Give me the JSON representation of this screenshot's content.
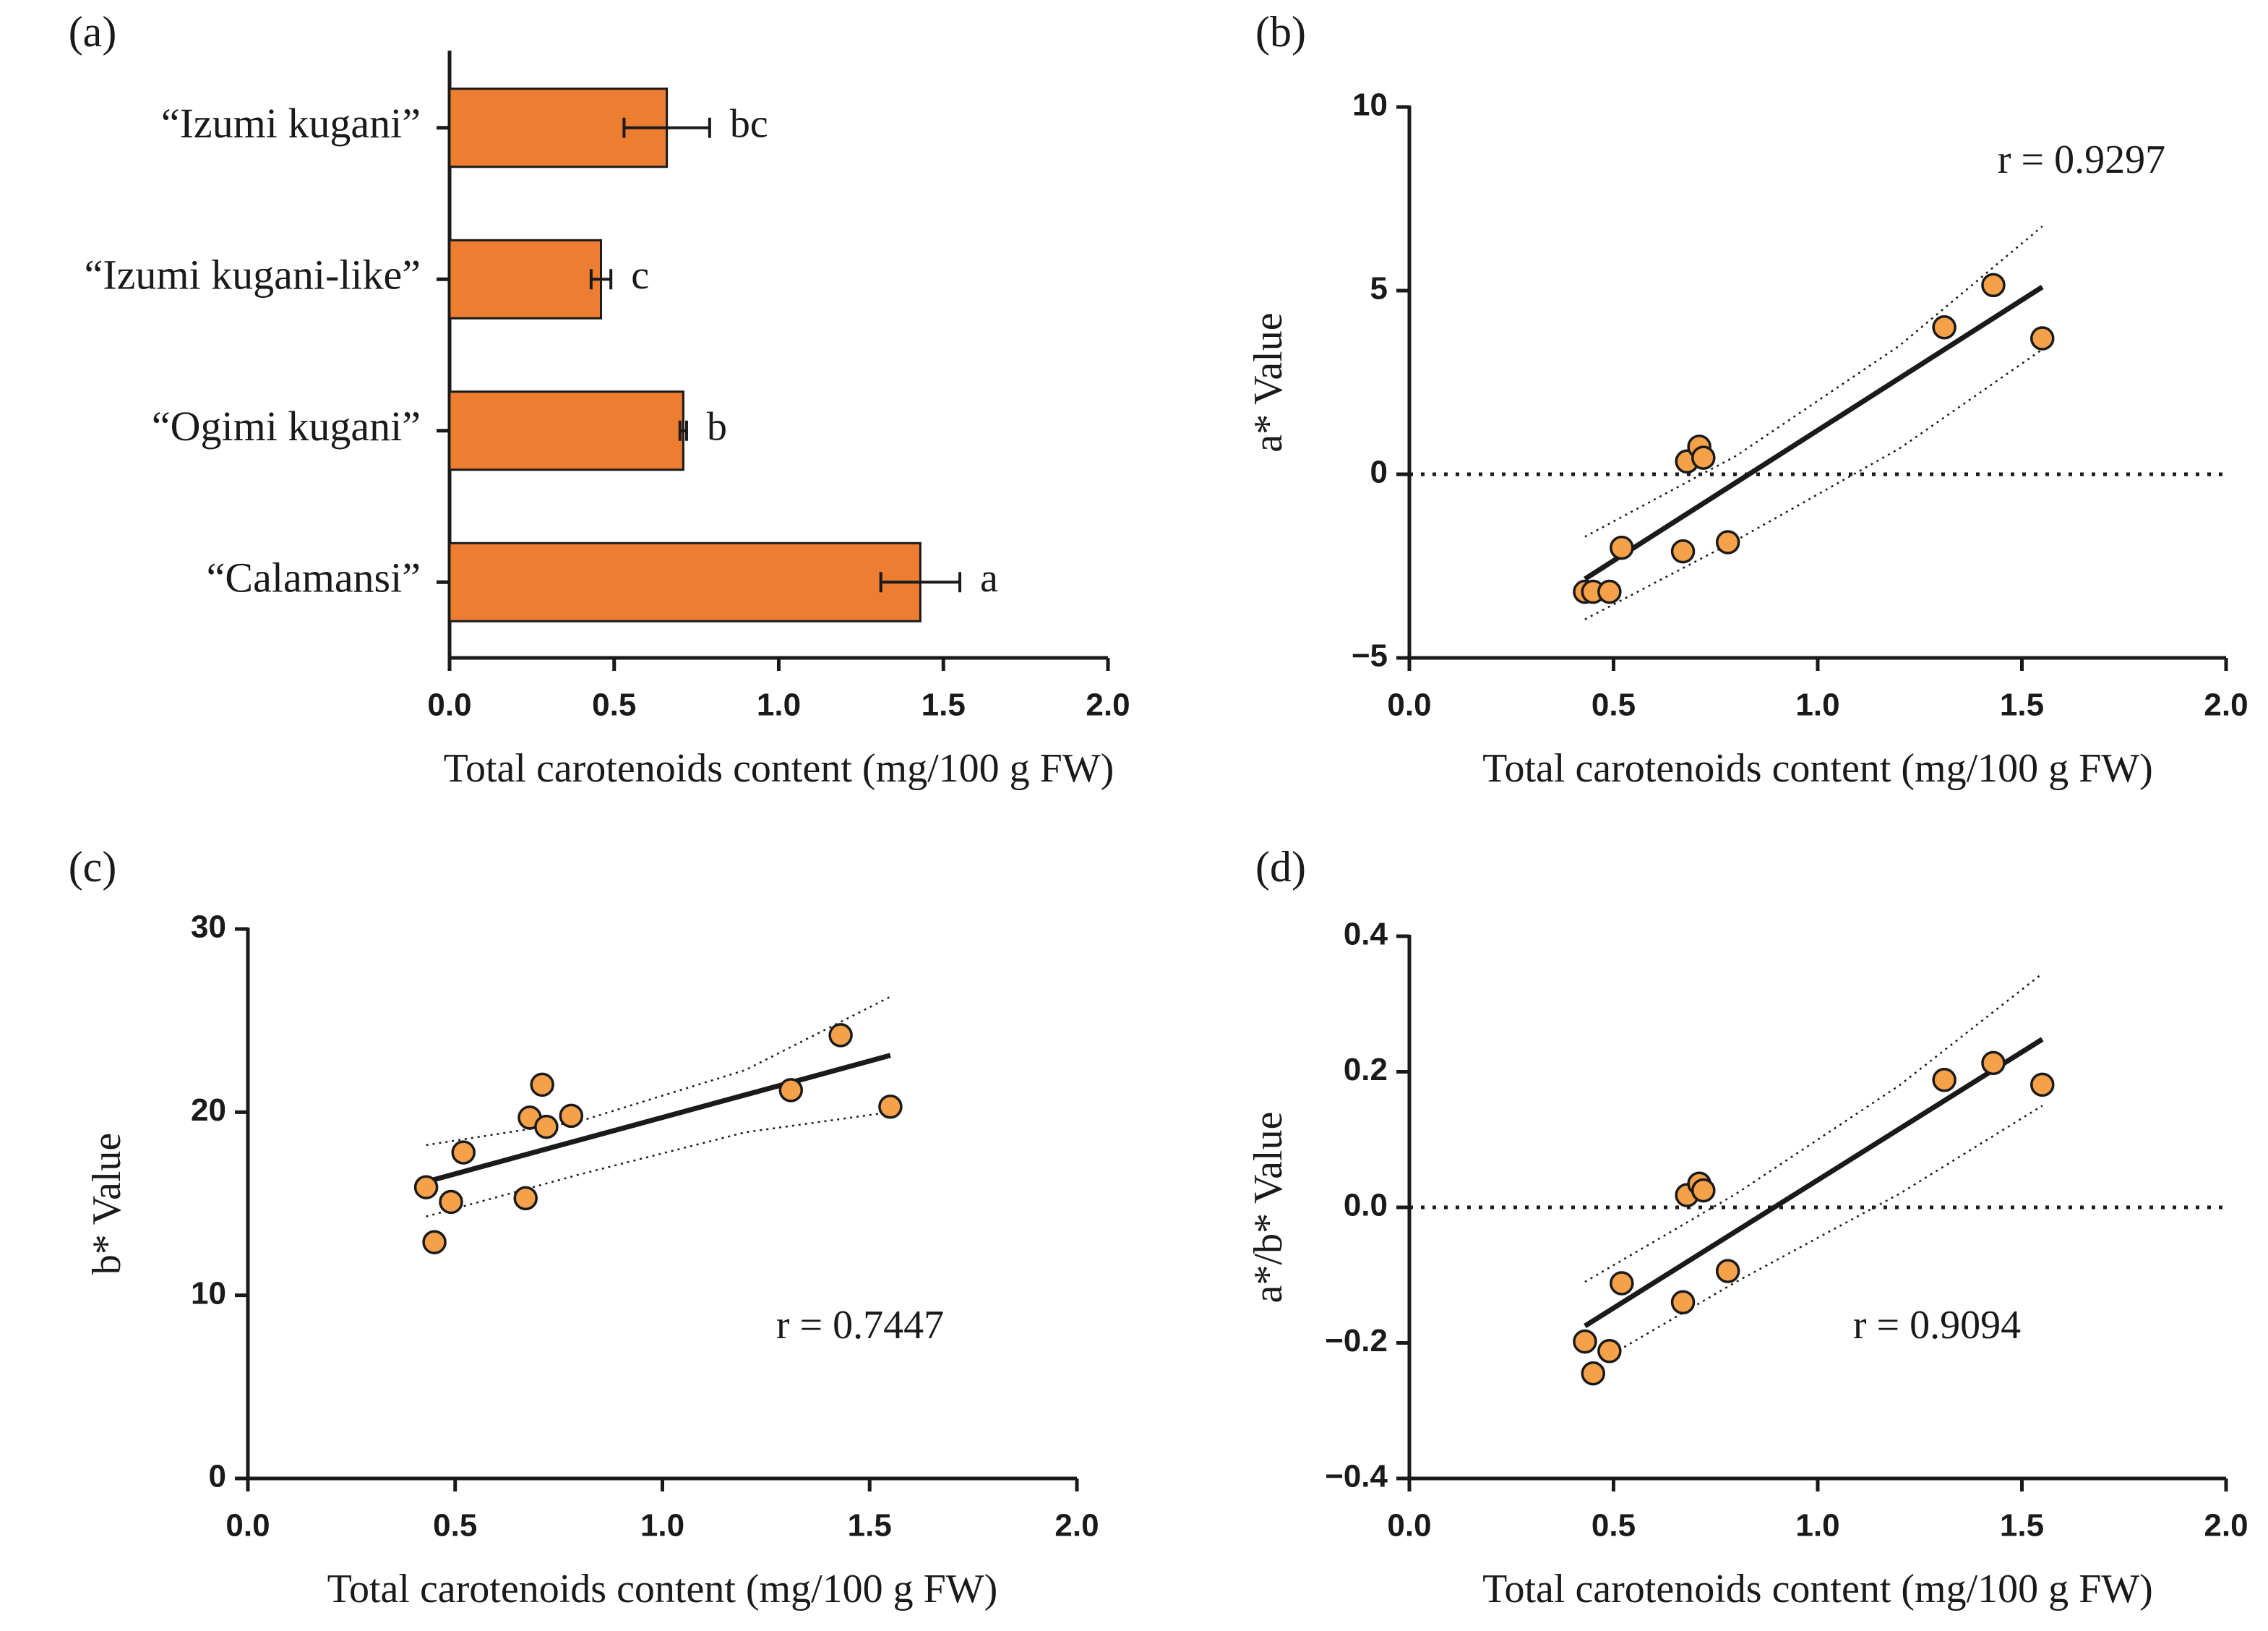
{
  "colors": {
    "bar": "#ED7D31",
    "point": "#F4A14A",
    "ink": "#1a1a1a"
  },
  "chart_data": [
    {
      "id": "a",
      "panel_label": "(a)",
      "type": "bar",
      "orientation": "horizontal",
      "categories": [
        "“Izumi kugani”",
        "“Izumi kugani-like”",
        "“Ogimi kugani”",
        "“Calamansi”"
      ],
      "values": [
        0.66,
        0.46,
        0.71,
        1.43
      ],
      "errors": [
        0.13,
        0.03,
        0.01,
        0.12
      ],
      "significance": [
        "bc",
        "c",
        "b",
        "a"
      ],
      "xlabel": "Total carotenoids content (mg/100 g FW)",
      "xlim": [
        0,
        2.0
      ],
      "xticks": [
        "0.0",
        "0.5",
        "1.0",
        "1.5",
        "2.0"
      ]
    },
    {
      "id": "b",
      "panel_label": "(b)",
      "type": "scatter",
      "points": [
        {
          "x": 0.43,
          "y": -3.2
        },
        {
          "x": 0.45,
          "y": -3.2
        },
        {
          "x": 0.49,
          "y": -3.2
        },
        {
          "x": 0.52,
          "y": -2.0
        },
        {
          "x": 0.67,
          "y": -2.1
        },
        {
          "x": 0.68,
          "y": 0.35
        },
        {
          "x": 0.71,
          "y": 0.75
        },
        {
          "x": 0.72,
          "y": 0.45
        },
        {
          "x": 0.78,
          "y": -1.85
        },
        {
          "x": 1.31,
          "y": 4.0
        },
        {
          "x": 1.43,
          "y": 5.15
        },
        {
          "x": 1.55,
          "y": 3.7
        }
      ],
      "fit": {
        "x1": 0.43,
        "y1": -2.85,
        "x2": 1.55,
        "y2": 5.1
      },
      "ci_upper": [
        [
          0.43,
          -1.7
        ],
        [
          0.8,
          0.5
        ],
        [
          1.2,
          3.5
        ],
        [
          1.55,
          6.75
        ]
      ],
      "ci_lower": [
        [
          0.43,
          -3.95
        ],
        [
          0.8,
          -1.8
        ],
        [
          1.2,
          0.7
        ],
        [
          1.55,
          3.4
        ]
      ],
      "zero_line": true,
      "annotation": "r = 0.9297",
      "xlabel": "Total carotenoids content (mg/100 g FW)",
      "ylabel": "a* Value",
      "xlim": [
        0,
        2.0
      ],
      "ylim": [
        -5,
        10
      ],
      "xticks": [
        "0.0",
        "0.5",
        "1.0",
        "1.5",
        "2.0"
      ],
      "yticks": [
        "−5",
        "0",
        "5",
        "10"
      ]
    },
    {
      "id": "c",
      "panel_label": "(c)",
      "type": "scatter",
      "points": [
        {
          "x": 0.43,
          "y": 15.9
        },
        {
          "x": 0.45,
          "y": 12.9
        },
        {
          "x": 0.49,
          "y": 15.1
        },
        {
          "x": 0.52,
          "y": 17.8
        },
        {
          "x": 0.67,
          "y": 15.3
        },
        {
          "x": 0.68,
          "y": 19.7
        },
        {
          "x": 0.71,
          "y": 21.5
        },
        {
          "x": 0.72,
          "y": 19.2
        },
        {
          "x": 0.78,
          "y": 19.8
        },
        {
          "x": 1.31,
          "y": 21.2
        },
        {
          "x": 1.43,
          "y": 24.2
        },
        {
          "x": 1.55,
          "y": 20.3
        }
      ],
      "fit": {
        "x1": 0.43,
        "y1": 16.2,
        "x2": 1.55,
        "y2": 23.1
      },
      "ci_upper": [
        [
          0.43,
          18.2
        ],
        [
          0.8,
          19.5
        ],
        [
          1.2,
          22.3
        ],
        [
          1.55,
          26.3
        ]
      ],
      "ci_lower": [
        [
          0.43,
          14.3
        ],
        [
          0.8,
          16.6
        ],
        [
          1.2,
          18.9
        ],
        [
          1.55,
          20.0
        ]
      ],
      "zero_line": false,
      "annotation": "r = 0.7447",
      "xlabel": "Total carotenoids content (mg/100 g FW)",
      "ylabel": "b* Value",
      "xlim": [
        0,
        2.0
      ],
      "ylim": [
        0,
        30
      ],
      "xticks": [
        "0.0",
        "0.5",
        "1.0",
        "1.5",
        "2.0"
      ],
      "yticks": [
        "0",
        "10",
        "20",
        "30"
      ]
    },
    {
      "id": "d",
      "panel_label": "(d)",
      "type": "scatter",
      "points": [
        {
          "x": 0.43,
          "y": -0.198
        },
        {
          "x": 0.45,
          "y": -0.245
        },
        {
          "x": 0.49,
          "y": -0.212
        },
        {
          "x": 0.52,
          "y": -0.112
        },
        {
          "x": 0.67,
          "y": -0.14
        },
        {
          "x": 0.68,
          "y": 0.018
        },
        {
          "x": 0.71,
          "y": 0.035
        },
        {
          "x": 0.72,
          "y": 0.025
        },
        {
          "x": 0.78,
          "y": -0.094
        },
        {
          "x": 1.31,
          "y": 0.188
        },
        {
          "x": 1.43,
          "y": 0.213
        },
        {
          "x": 1.55,
          "y": 0.181
        }
      ],
      "fit": {
        "x1": 0.43,
        "y1": -0.175,
        "x2": 1.55,
        "y2": 0.248
      },
      "ci_upper": [
        [
          0.43,
          -0.11
        ],
        [
          0.8,
          0.02
        ],
        [
          1.2,
          0.18
        ],
        [
          1.55,
          0.345
        ]
      ],
      "ci_lower": [
        [
          0.43,
          -0.24
        ],
        [
          0.8,
          -0.11
        ],
        [
          1.2,
          0.02
        ],
        [
          1.55,
          0.15
        ]
      ],
      "zero_line": true,
      "annotation": "r = 0.9094",
      "xlabel": "Total carotenoids content (mg/100 g FW)",
      "ylabel": "a*/b*  Value",
      "xlim": [
        0,
        2.0
      ],
      "ylim": [
        -0.4,
        0.4
      ],
      "xticks": [
        "0.0",
        "0.5",
        "1.0",
        "1.5",
        "2.0"
      ],
      "yticks": [
        "−0.4",
        "−0.2",
        "0.0",
        "0.2",
        "0.4"
      ]
    }
  ]
}
